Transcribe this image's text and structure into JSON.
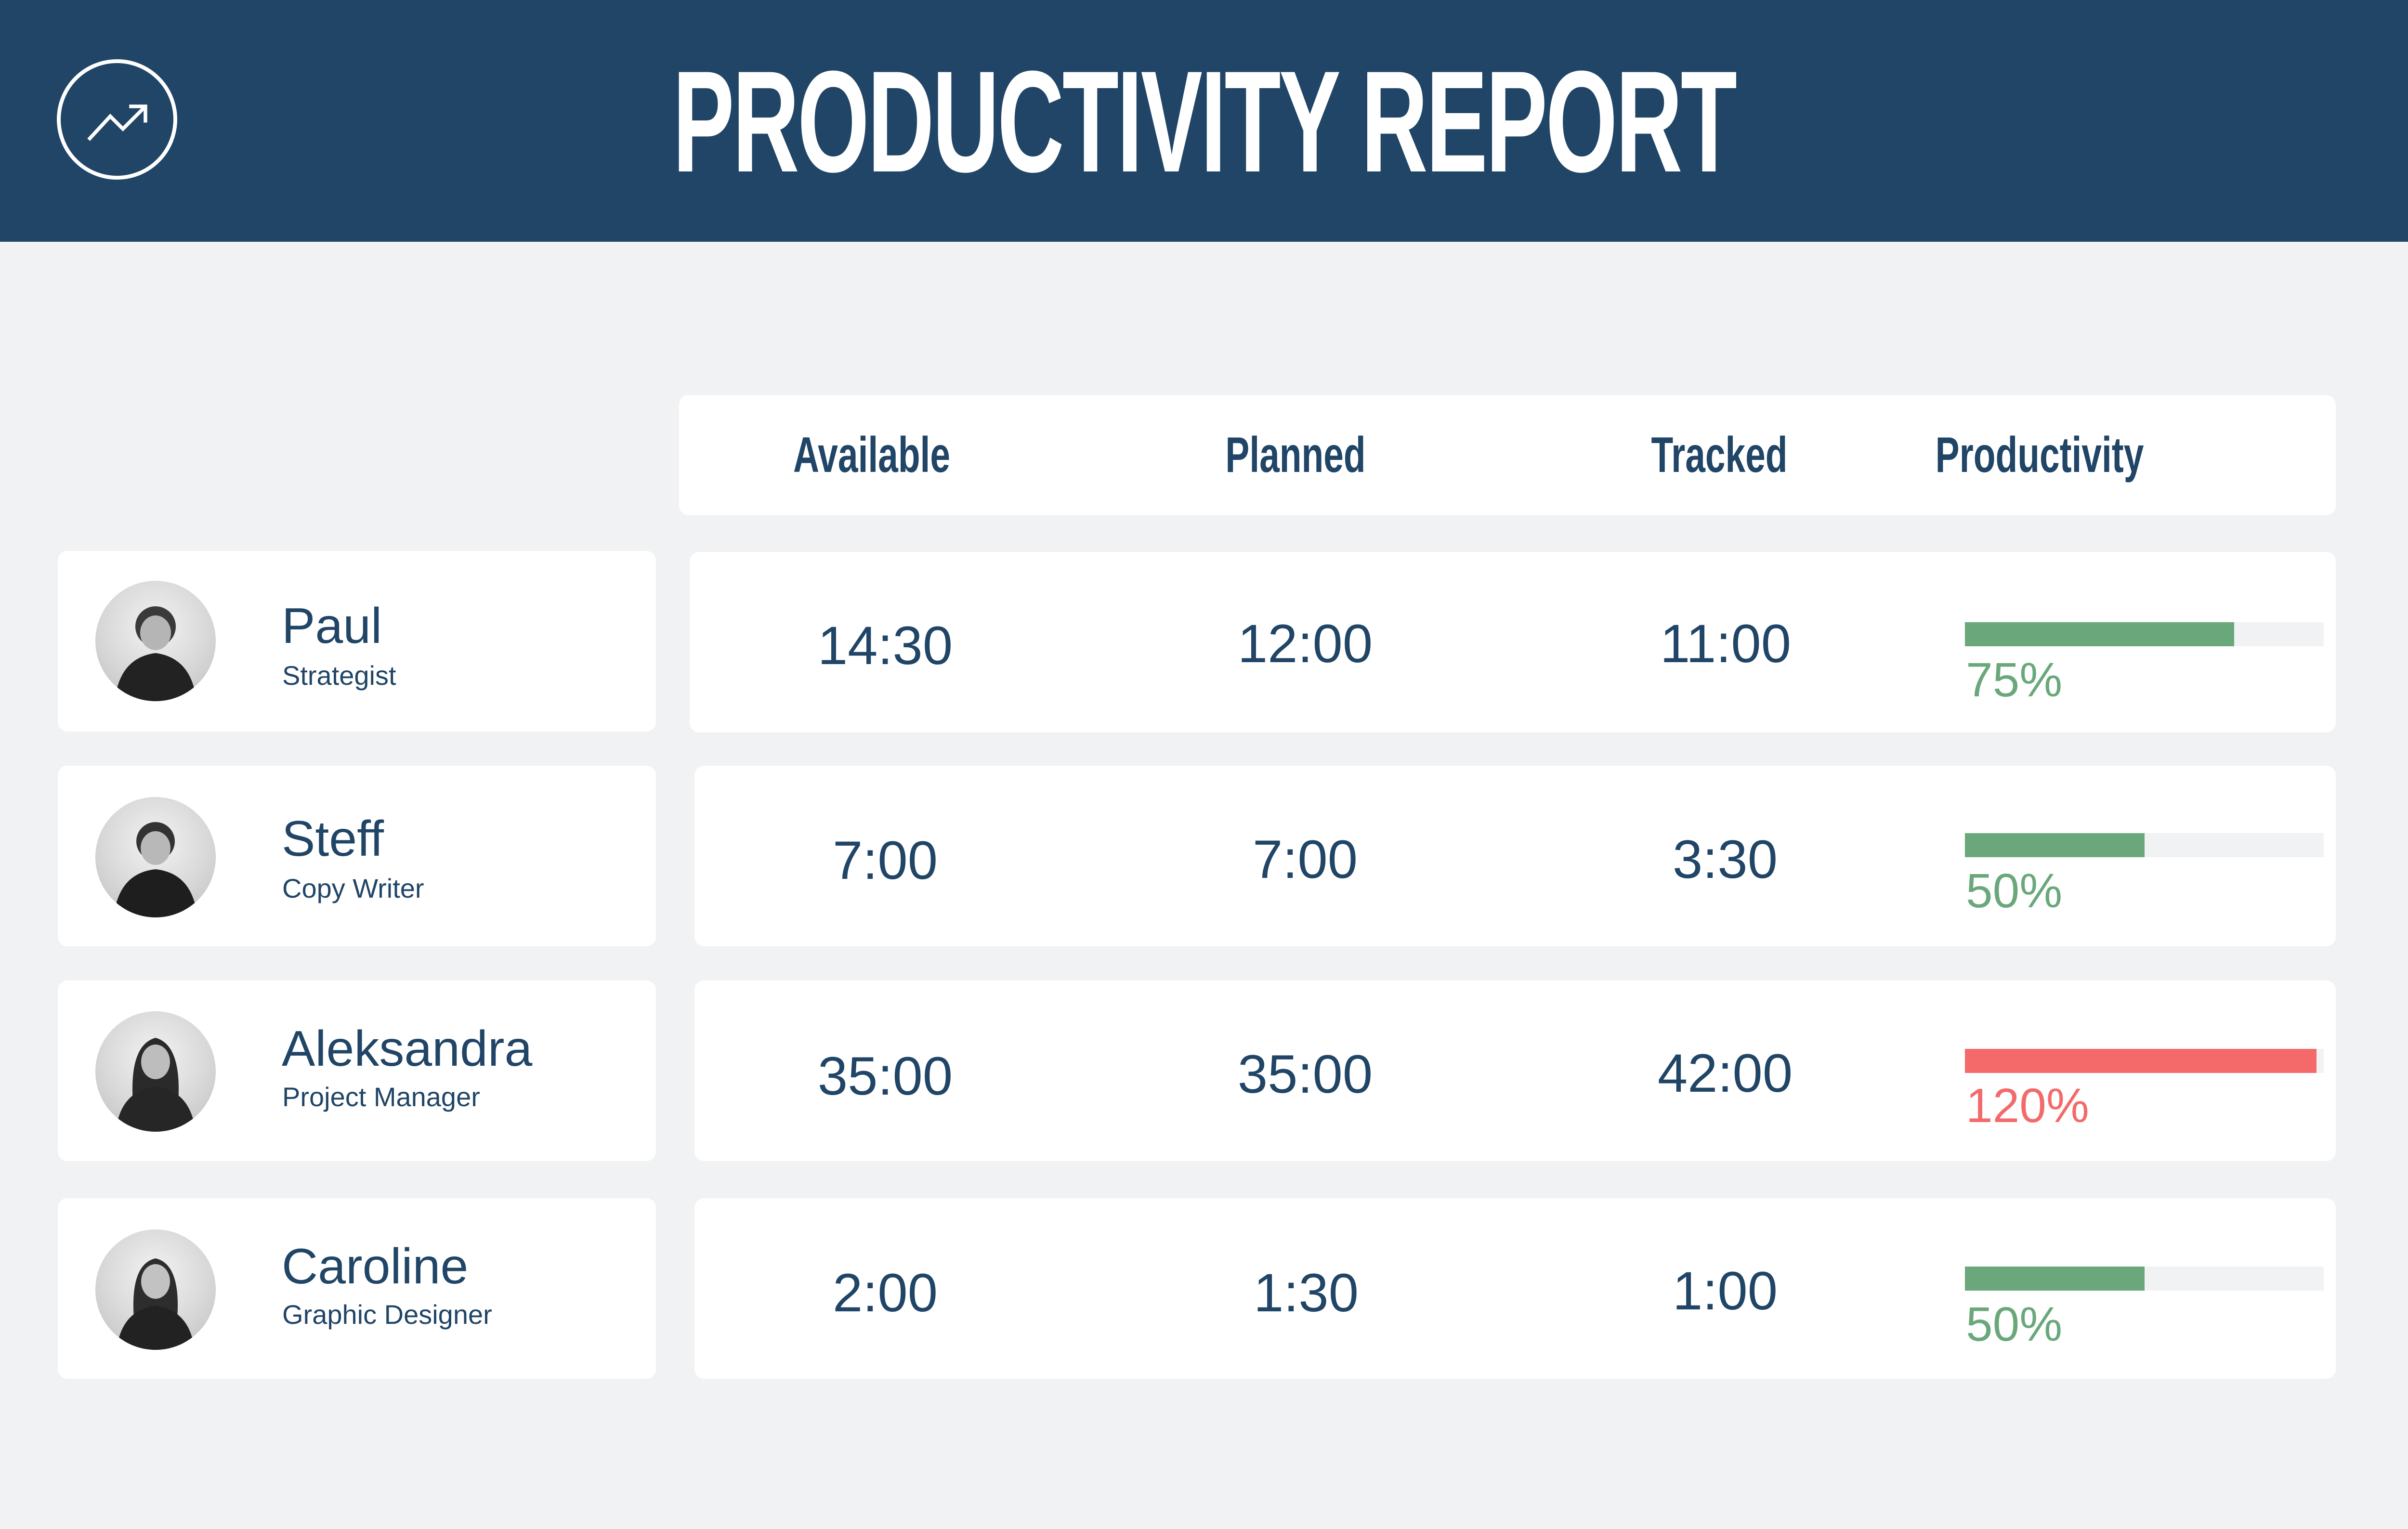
{
  "header": {
    "title": "PRODUCTIVITY REPORT",
    "icon": "trending-up-icon"
  },
  "columns": {
    "available": "Available",
    "planned": "Planned",
    "tracked": "Tracked",
    "productivity": "Productivity"
  },
  "colors": {
    "header_bg": "#204566",
    "text": "#204566",
    "page_bg": "#f1f2f3",
    "ok": "#6aa87b",
    "over": "#f46a6a"
  },
  "rows": [
    {
      "name": "Paul",
      "role": "Strategist",
      "available": "14:30",
      "planned": "12:00",
      "tracked": "11:00",
      "productivity_label": "75%",
      "productivity_value": 0.75,
      "status": "ok"
    },
    {
      "name": "Steff",
      "role": "Copy Writer",
      "available": "7:00",
      "planned": "7:00",
      "tracked": "3:30",
      "productivity_label": "50%",
      "productivity_value": 0.5,
      "status": "ok"
    },
    {
      "name": "Aleksandra",
      "role": "Project Manager",
      "available": "35:00",
      "planned": "35:00",
      "tracked": "42:00",
      "productivity_label": "120%",
      "productivity_value": 1.2,
      "status": "over"
    },
    {
      "name": "Caroline",
      "role": "Graphic Designer",
      "available": "2:00",
      "planned": "1:30",
      "tracked": "1:00",
      "productivity_label": "50%",
      "productivity_value": 0.5,
      "status": "ok"
    }
  ]
}
